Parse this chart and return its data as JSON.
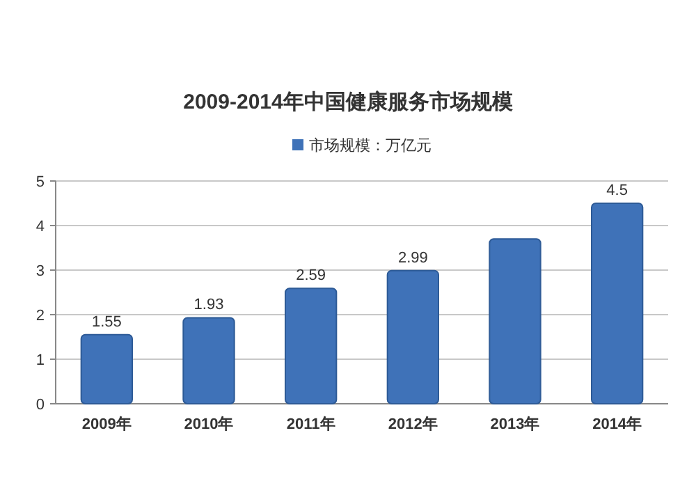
{
  "chart_data": {
    "type": "bar",
    "title": "2009-2014年中国健康服务市场规模",
    "categories": [
      "2009年",
      "2010年",
      "2011年",
      "2012年",
      "2013年",
      "2014年"
    ],
    "series": [
      {
        "name": "市场规模：万亿元",
        "color": "#3f72b8",
        "values": [
          1.55,
          1.93,
          2.59,
          2.99,
          3.7,
          4.5
        ],
        "value_labels": [
          "1.55",
          "1.93",
          "2.59",
          "2.99",
          null,
          "4.5"
        ]
      }
    ],
    "ylim": [
      0,
      5
    ],
    "yticks": [
      0,
      1,
      2,
      3,
      4,
      5
    ],
    "grid": "y",
    "legend": "top"
  }
}
